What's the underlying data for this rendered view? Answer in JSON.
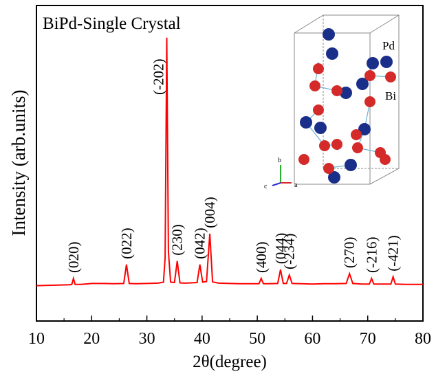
{
  "chart_data": {
    "type": "line",
    "title": "BiPd-Single Crystal",
    "x_label": "2θ(degree)",
    "y_label": "Intensity (arb.units)",
    "color": "#ff0000",
    "xlim": [
      10,
      80
    ],
    "xticks": [
      10,
      20,
      30,
      40,
      50,
      60,
      70,
      80
    ],
    "xticks_minor": [
      15,
      25,
      35,
      45,
      55,
      65,
      75
    ],
    "ylim": [
      0,
      100
    ],
    "x": [
      10,
      12,
      14,
      16,
      16.4,
      16.7,
      17.0,
      18,
      20,
      22,
      24,
      25.8,
      26.3,
      26.8,
      28,
      30,
      32,
      33.0,
      33.3,
      33.6,
      33.9,
      34.3,
      35.0,
      35.5,
      36.0,
      37,
      38,
      39.1,
      39.6,
      40.1,
      40.8,
      41.4,
      41.9,
      43,
      45,
      47,
      49,
      50.3,
      50.7,
      51.1,
      52,
      53.7,
      54.2,
      54.7,
      55.3,
      55.8,
      56.3,
      58,
      60,
      62,
      64,
      66.1,
      66.7,
      67.3,
      69,
      70.3,
      70.7,
      71.1,
      73,
      74.2,
      74.6,
      75.0,
      77,
      80
    ],
    "values": [
      11.2,
      11.3,
      11.4,
      11.5,
      11.6,
      13.5,
      11.6,
      11.6,
      11.9,
      11.9,
      11.8,
      11.9,
      17.9,
      11.9,
      11.8,
      11.9,
      12.0,
      12.3,
      20,
      89.8,
      22,
      12.3,
      12.2,
      19.0,
      12.1,
      12.0,
      12.1,
      12.2,
      17.9,
      12.3,
      12.5,
      27.7,
      12.4,
      12.0,
      11.9,
      11.8,
      11.8,
      11.8,
      13.5,
      11.8,
      11.8,
      11.9,
      16.3,
      11.9,
      11.9,
      14.6,
      11.9,
      11.8,
      11.7,
      11.8,
      11.8,
      11.9,
      15.0,
      11.9,
      11.7,
      11.7,
      13.5,
      11.7,
      11.7,
      11.7,
      14.0,
      11.7,
      11.6,
      11.6
    ],
    "annotations": [
      {
        "text": "(020)",
        "x": 16.7
      },
      {
        "text": "(022)",
        "x": 26.3
      },
      {
        "text": "(-202)",
        "x": 33.6
      },
      {
        "text": "(230)",
        "x": 35.5
      },
      {
        "text": "(042)",
        "x": 39.6
      },
      {
        "text": "(004)",
        "x": 41.4
      },
      {
        "text": "(400)",
        "x": 50.7
      },
      {
        "text": "(044)",
        "x": 54.2
      },
      {
        "text": "(-234)",
        "x": 55.8
      },
      {
        "text": "(270)",
        "x": 66.7
      },
      {
        "text": "(-216)",
        "x": 70.7
      },
      {
        "text": "(-421)",
        "x": 74.6
      }
    ],
    "inset_labels": [
      "Pd",
      "Bi",
      "b",
      "c",
      "a"
    ]
  }
}
